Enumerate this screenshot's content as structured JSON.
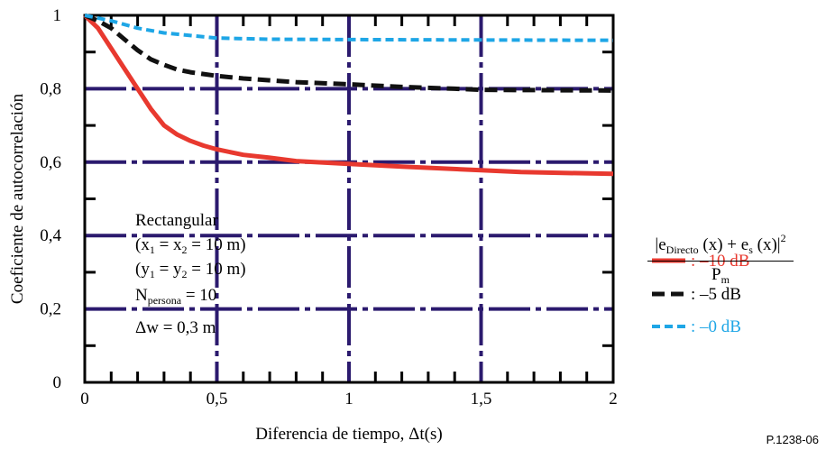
{
  "chart_data": {
    "type": "line",
    "xlabel": "Diferencia de tiempo,  Δt(s)",
    "ylabel": "Coeficiente de autocorrelación",
    "xlim": [
      0,
      2
    ],
    "ylim": [
      0,
      1
    ],
    "x_ticks": [
      {
        "v": 0,
        "label": "0"
      },
      {
        "v": 0.5,
        "label": "0,5"
      },
      {
        "v": 1,
        "label": "1"
      },
      {
        "v": 1.5,
        "label": "1,5"
      },
      {
        "v": 2,
        "label": "2"
      }
    ],
    "y_ticks": [
      {
        "v": 0,
        "label": "0"
      },
      {
        "v": 0.2,
        "label": "0,2"
      },
      {
        "v": 0.4,
        "label": "0,4"
      },
      {
        "v": 0.6,
        "label": "0,6"
      },
      {
        "v": 0.8,
        "label": "0,8"
      },
      {
        "v": 1,
        "label": "1"
      }
    ],
    "grid": true,
    "grid_color": "#2b1a6e",
    "series": [
      {
        "name": ": –10 dB",
        "color": "#e8392f",
        "x": [
          0,
          0.05,
          0.1,
          0.15,
          0.2,
          0.25,
          0.3,
          0.35,
          0.4,
          0.45,
          0.5,
          0.6,
          0.7,
          0.8,
          1.0,
          1.2,
          1.5,
          1.65,
          2.0
        ],
        "y": [
          1.0,
          0.965,
          0.91,
          0.855,
          0.8,
          0.745,
          0.7,
          0.675,
          0.658,
          0.645,
          0.635,
          0.62,
          0.612,
          0.603,
          0.595,
          0.588,
          0.578,
          0.573,
          0.568
        ]
      },
      {
        "name": ": –5 dB",
        "color": "#111111",
        "x": [
          0,
          0.05,
          0.1,
          0.15,
          0.2,
          0.25,
          0.3,
          0.35,
          0.4,
          0.5,
          0.6,
          0.8,
          1.0,
          1.2,
          1.4,
          1.5,
          2.0
        ],
        "y": [
          1.0,
          0.985,
          0.965,
          0.935,
          0.905,
          0.88,
          0.865,
          0.852,
          0.845,
          0.835,
          0.828,
          0.818,
          0.812,
          0.805,
          0.8,
          0.797,
          0.795
        ]
      },
      {
        "name": ": –0 dB",
        "color": "#1ea6e6",
        "x": [
          0,
          0.1,
          0.2,
          0.3,
          0.4,
          0.5,
          0.7,
          1.0,
          1.5,
          2.0
        ],
        "y": [
          1.0,
          0.985,
          0.965,
          0.952,
          0.945,
          0.938,
          0.935,
          0.934,
          0.933,
          0.932
        ]
      }
    ]
  },
  "annotation": {
    "lines": [
      {
        "base": "Rectangular"
      },
      {
        "base": "(x",
        "sub": "1",
        "rest": " = x",
        "sub2": "2",
        "rest2": " = 10 m)"
      },
      {
        "base": "(y",
        "sub": "1",
        "rest": " = y",
        "sub2": "2",
        "rest2": " = 10 m)"
      },
      {
        "base": "N",
        "sub": "persona",
        "rest": " = 10"
      },
      {
        "base": "Δw = 0,3 m"
      }
    ]
  },
  "formula": {
    "num_open": "|e",
    "num_sub": "Directo",
    "num_mid": " (x) + e",
    "num_sub2": "s",
    "num_close": " (x)|",
    "num_sup": "2",
    "den_base": "P",
    "den_sub": "m"
  },
  "figure_id": "P.1238-06"
}
